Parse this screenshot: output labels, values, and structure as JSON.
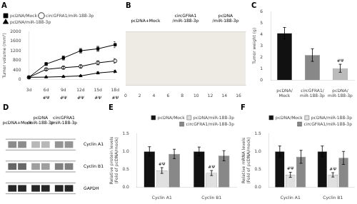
{
  "chart_data": [
    {
      "type": "line",
      "title": "A",
      "categories": [
        "3d",
        "6d",
        "9d",
        "12d",
        "15d",
        "18d"
      ],
      "series": [
        {
          "name": "pcDNA/Mock",
          "color": "#000000",
          "marker": "square",
          "values": [
            100,
            650,
            900,
            1200,
            1280,
            1450
          ],
          "errors": [
            30,
            60,
            80,
            90,
            100,
            120
          ]
        },
        {
          "name": "circGFRA1/miR-188-3p",
          "color": "#000000",
          "marker": "open_circle",
          "values": [
            100,
            430,
            500,
            550,
            700,
            780
          ],
          "errors": [
            30,
            40,
            50,
            60,
            80,
            90
          ]
        },
        {
          "name": "pcDNA/miR-188-3p",
          "color": "#000000",
          "marker": "triangle",
          "values": [
            100,
            110,
            130,
            160,
            280,
            340
          ],
          "errors": [
            20,
            15,
            20,
            25,
            40,
            50
          ]
        }
      ],
      "ylabel": "Tumor volume (mm³)",
      "ylim": [
        0,
        2000
      ],
      "yticks": [
        0,
        400,
        800,
        1200,
        1600,
        2000
      ],
      "legend": "upper left",
      "grid": false,
      "annotations": [
        {
          "text": "#Ψ",
          "x": "6d"
        },
        {
          "text": "#Ψ",
          "x": "9d"
        },
        {
          "text": "#Ψ",
          "x": "12d"
        },
        {
          "text": "#Ψ",
          "x": "15d"
        },
        {
          "text": "#Ψ",
          "x": "18d"
        }
      ]
    },
    {
      "type": "image",
      "title": "B",
      "categories": [
        "pcDNA+Mock",
        "circGFRA1\n/miR-188-3p",
        "pcDNA\n/miR-188-3p"
      ],
      "xlim": [
        0,
        17
      ],
      "xticks": [
        0,
        2,
        4,
        6,
        8,
        10,
        12,
        14,
        16
      ],
      "grid": false
    },
    {
      "type": "bar",
      "title": "C",
      "categories": [
        "pcDNA/\nMock",
        "circGFRA1/\nmiR-188-3p",
        "pcDNA/\nmiR-188-3p"
      ],
      "values": [
        4.1,
        2.2,
        1.05
      ],
      "errors": [
        0.5,
        0.55,
        0.35
      ],
      "colors": [
        "#111111",
        "#888888",
        "#bbbbbb"
      ],
      "ylabel": "Tumor weight (g)",
      "ylim": [
        0,
        6
      ],
      "yticks": [
        0,
        1,
        2,
        3,
        4,
        5,
        6
      ],
      "grid": false,
      "annotations": [
        {
          "text": "#Ψ",
          "x": "pcDNA/\nmiR-188-3p"
        }
      ]
    },
    {
      "type": "blot",
      "title": "D",
      "categories": [
        "pcDNA+Mock",
        "pcDNA\n/miR-188-3p",
        "circGFRA1\n/miR-188-3p"
      ],
      "rows": [
        "Cyclin A1",
        "Cyclin B1",
        "GAPDH"
      ],
      "cells": [
        [
          0.55,
          0.55,
          0.72,
          0.72,
          0.58,
          0.58
        ],
        [
          0.4,
          0.4,
          0.62,
          0.62,
          0.5,
          0.5
        ],
        [
          0.15,
          0.15,
          0.15,
          0.15,
          0.15,
          0.15
        ]
      ],
      "grid": false
    },
    {
      "type": "bar",
      "title": "E",
      "categories": [
        "Cyclin A1",
        "Cyclin B1"
      ],
      "series": [
        {
          "name": "pcDNA/Mock",
          "color": "#111111",
          "values": [
            1.0,
            1.0
          ],
          "errors": [
            0.13,
            0.12
          ]
        },
        {
          "name": "pcDNA/miR-188-3p",
          "color": "#e0e0e0",
          "values": [
            0.47,
            0.4
          ],
          "errors": [
            0.08,
            0.07
          ]
        },
        {
          "name": "circGFRA1/miR-188-3p",
          "color": "#888888",
          "values": [
            0.93,
            0.88
          ],
          "errors": [
            0.13,
            0.14
          ]
        }
      ],
      "ylabel": "Relative protein levels\n(Fold of pcDNA/mock)",
      "ylim": [
        0,
        1.5
      ],
      "yticks": [
        {
          "value": 0,
          "label": "0.0"
        },
        0.5,
        {
          "value": 1,
          "label": "1.0"
        },
        1.5
      ],
      "legend": "upper right",
      "grid": false,
      "annotations": [
        {
          "text": "#Ψ",
          "x": "Cyclin A1",
          "series": "pcDNA/miR-188-3p"
        },
        {
          "text": "#Ψ",
          "x": "Cyclin B1",
          "series": "pcDNA/miR-188-3p"
        }
      ]
    },
    {
      "type": "bar",
      "title": "F",
      "categories": [
        "Cyclin A1",
        "Cyclin B1"
      ],
      "series": [
        {
          "name": "pcDNA/Mock",
          "color": "#111111",
          "values": [
            1.0,
            1.0
          ],
          "errors": [
            0.15,
            0.15
          ]
        },
        {
          "name": "pcDNA/miR-188-3p",
          "color": "#e0e0e0",
          "values": [
            0.35,
            0.35
          ],
          "errors": [
            0.07,
            0.06
          ]
        },
        {
          "name": "circGFRA1/miR-188-3p",
          "color": "#888888",
          "values": [
            0.85,
            0.82
          ],
          "errors": [
            0.18,
            0.18
          ]
        }
      ],
      "ylabel": "Relative mRNA levels\n(Fold of pcDNA/mock)",
      "ylim": [
        0,
        1.5
      ],
      "yticks": [
        {
          "value": 0,
          "label": "0.0"
        },
        0.5,
        {
          "value": 1,
          "label": "1.0"
        },
        1.5
      ],
      "legend": "upper right",
      "grid": false,
      "annotations": [
        {
          "text": "#Ψ",
          "x": "Cyclin A1",
          "series": "pcDNA/miR-188-3p"
        },
        {
          "text": "#Ψ",
          "x": "Cyclin B1",
          "series": "pcDNA/miR-188-3p"
        }
      ]
    }
  ]
}
